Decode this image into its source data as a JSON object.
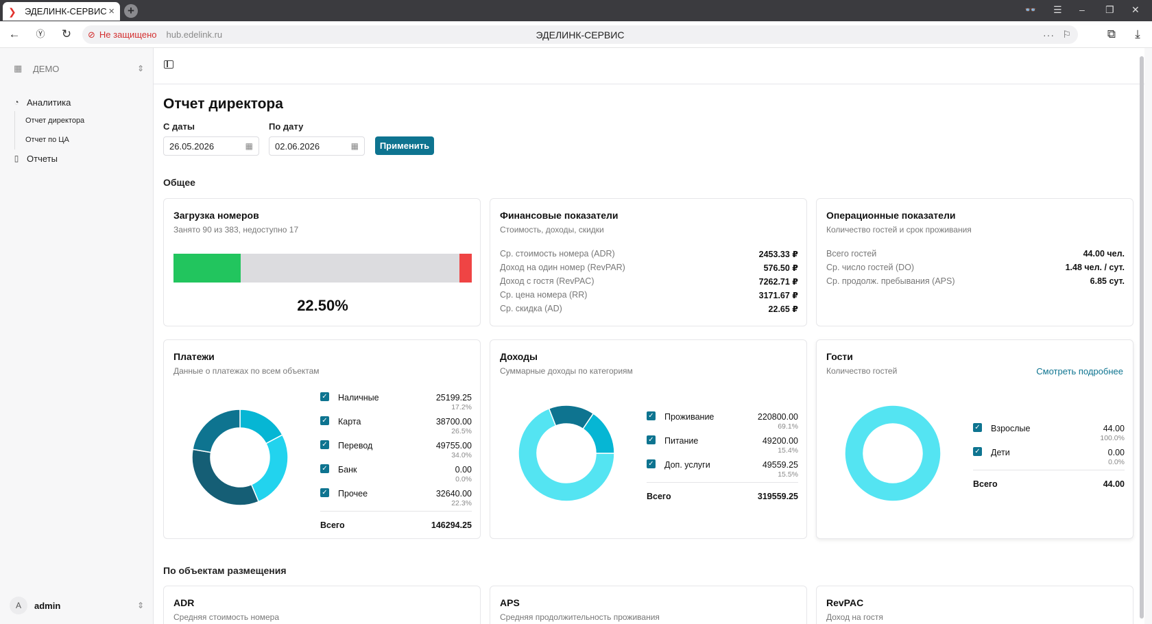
{
  "browser": {
    "tab_title": "ЭДЕЛИНК-СЕРВИС",
    "security_label": "Не защищено",
    "host": "hub.edelink.ru",
    "page_title": "ЭДЕЛИНК-СЕРВИС"
  },
  "sidebar": {
    "org": "ДЕМО",
    "nav": [
      {
        "label": "Аналитика",
        "icon": "chart-icon"
      },
      {
        "label": "Отчет директора"
      },
      {
        "label": "Отчет по ЦА"
      },
      {
        "label": "Отчеты",
        "icon": "document-icon"
      }
    ],
    "user": {
      "avatar": "A",
      "name": "admin"
    }
  },
  "main": {
    "title": "Отчет директора",
    "from_label": "С даты",
    "from_value": "26.05.2026",
    "to_label": "По дату",
    "to_value": "02.06.2026",
    "apply_label": "Применить",
    "section_general": "Общее",
    "section_objects": "По объектам размещения"
  },
  "occupancy": {
    "title": "Загрузка номеров",
    "subtitle": "Занято 90 из 383, недоступно 17",
    "occupied_fraction": 0.225,
    "unavailable_fraction": 0.042,
    "percent_label": "22.50%",
    "colors": {
      "occupied": "#22c55e",
      "free": "#dcdcdf",
      "unavailable": "#ef4444"
    }
  },
  "finance": {
    "title": "Финансовые показатели",
    "subtitle": "Стоимость, доходы, скидки",
    "rows": [
      {
        "k": "Ср. стоимость номера (ADR)",
        "v": "2453.33 ₽"
      },
      {
        "k": "Доход на один номер (RevPAR)",
        "v": "576.50 ₽"
      },
      {
        "k": "Доход с гостя (RevPAC)",
        "v": "7262.71 ₽"
      },
      {
        "k": "Ср. цена номера (RR)",
        "v": "3171.67 ₽"
      },
      {
        "k": "Ср. скидка (AD)",
        "v": "22.65 ₽"
      }
    ]
  },
  "operations": {
    "title": "Операционные показатели",
    "subtitle": "Количество гостей и срок проживания",
    "rows": [
      {
        "k": "Всего гостей",
        "v": "44.00 чел."
      },
      {
        "k": "Ср. число гостей (DO)",
        "v": "1.48 чел. / сут."
      },
      {
        "k": "Ср. продолж. пребывания (APS)",
        "v": "6.85 сут."
      }
    ]
  },
  "payments": {
    "title": "Платежи",
    "subtitle": "Данные о платежах по всем объектам",
    "items": [
      {
        "name": "Наличные",
        "value": "25199.25",
        "pct": "17.2%",
        "num": 25199.25,
        "color": "#06b6d4"
      },
      {
        "name": "Карта",
        "value": "38700.00",
        "pct": "26.5%",
        "num": 38700.0,
        "color": "#22d3ee"
      },
      {
        "name": "Перевод",
        "value": "49755.00",
        "pct": "34.0%",
        "num": 49755.0,
        "color": "#155e75"
      },
      {
        "name": "Банк",
        "value": "0.00",
        "pct": "0.0%",
        "num": 0,
        "color": "#0891b2"
      },
      {
        "name": "Прочее",
        "value": "32640.00",
        "pct": "22.3%",
        "num": 32640.0,
        "color": "#0e7490"
      }
    ],
    "total_label": "Всего",
    "total_value": "146294.25"
  },
  "income": {
    "title": "Доходы",
    "subtitle": "Суммарные доходы по категориям",
    "items": [
      {
        "name": "Проживание",
        "value": "220800.00",
        "pct": "69.1%",
        "num": 220800.0,
        "color": "#54e4f2"
      },
      {
        "name": "Питание",
        "value": "49200.00",
        "pct": "15.4%",
        "num": 49200.0,
        "color": "#0e7490"
      },
      {
        "name": "Доп. услуги",
        "value": "49559.25",
        "pct": "15.5%",
        "num": 49559.25,
        "color": "#06b6d4"
      }
    ],
    "total_label": "Всего",
    "total_value": "319559.25"
  },
  "guests": {
    "title": "Гости",
    "subtitle": "Количество гостей",
    "link": "Смотреть подробнее",
    "items": [
      {
        "name": "Взрослые",
        "value": "44.00",
        "pct": "100.0%",
        "num": 44,
        "color": "#54e4f2"
      },
      {
        "name": "Дети",
        "value": "0.00",
        "pct": "0.0%",
        "num": 0,
        "color": "#0e7490"
      }
    ],
    "total_label": "Всего",
    "total_value": "44.00"
  },
  "objects": [
    {
      "title": "ADR",
      "subtitle": "Средняя стоимость номера"
    },
    {
      "title": "APS",
      "subtitle": "Средняя продолжительность проживания"
    },
    {
      "title": "RevPAC",
      "subtitle": "Доход на гостя"
    }
  ]
}
